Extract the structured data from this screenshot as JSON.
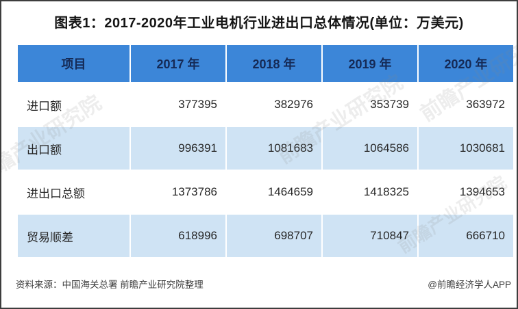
{
  "title": "图表1：2017-2020年工业电机行业进出口总体情况(单位：万美元)",
  "table": {
    "columns": [
      "项目",
      "2017 年",
      "2018 年",
      "2019 年",
      "2020 年"
    ],
    "rows": [
      {
        "label": "进口额",
        "values": [
          "377395",
          "382976",
          "353739",
          "363972"
        ]
      },
      {
        "label": "出口额",
        "values": [
          "996391",
          "1081683",
          "1064586",
          "1030681"
        ]
      },
      {
        "label": "进出口总额",
        "values": [
          "1373786",
          "1464659",
          "1418325",
          "1394653"
        ]
      },
      {
        "label": "贸易顺差",
        "values": [
          "618996",
          "698707",
          "710847",
          "666710"
        ]
      }
    ]
  },
  "footer": {
    "source": "资料来源：中国海关总署 前瞻产业研究院整理",
    "credit": "@前瞻经济学人APP"
  },
  "watermark": {
    "text": "前瞻产业研究院"
  },
  "colors": {
    "header_bg": "#3c86d8",
    "header_text": "#152a56",
    "row_alt_bg": "#cfe3f4",
    "row_bg": "#ffffff",
    "body_text": "#262626",
    "title_text": "#151515",
    "footer_text": "#3d3d3d",
    "page_border": "#3d3d3d"
  },
  "chart_data": {
    "type": "table",
    "title": "图表1：2017-2020年工业电机行业进出口总体情况(单位：万美元)",
    "unit": "万美元",
    "categories": [
      "2017年",
      "2018年",
      "2019年",
      "2020年"
    ],
    "series": [
      {
        "name": "进口额",
        "values": [
          377395,
          382976,
          353739,
          363972
        ]
      },
      {
        "name": "出口额",
        "values": [
          996391,
          1081683,
          1064586,
          1030681
        ]
      },
      {
        "name": "进出口总额",
        "values": [
          1373786,
          1464659,
          1418325,
          1394653
        ]
      },
      {
        "name": "贸易顺差",
        "values": [
          618996,
          698707,
          710847,
          666710
        ]
      }
    ],
    "source_note": "资料来源：中国海关总署 前瞻产业研究院整理"
  }
}
